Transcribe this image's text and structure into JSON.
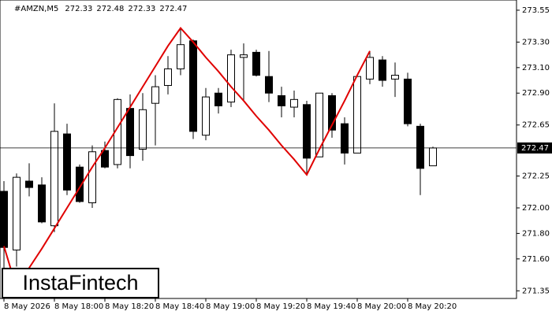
{
  "chart_data": {
    "type": "candlestick",
    "title": "#AMZN,M5",
    "categories": [
      "8 May 2026",
      null,
      null,
      null,
      "8 May 18:00",
      null,
      null,
      null,
      "8 May 18:20",
      null,
      null,
      null,
      "8 May 18:40",
      null,
      null,
      null,
      "8 May 19:00",
      null,
      null,
      null,
      "8 May 19:20",
      null,
      null,
      null,
      "8 May 19:40",
      null,
      null,
      null,
      "8 May 20:00",
      null,
      null,
      null,
      "8 May 20:20",
      null,
      null
    ],
    "open": [
      272.13,
      271.67,
      272.21,
      272.18,
      271.86,
      272.58,
      272.32,
      272.04,
      272.45,
      272.34,
      272.78,
      272.46,
      272.82,
      272.96,
      273.09,
      273.31,
      272.57,
      272.9,
      272.83,
      273.18,
      273.22,
      273.03,
      272.88,
      272.79,
      272.81,
      272.4,
      272.88,
      272.66,
      272.43,
      273.01,
      273.16,
      273.01,
      273.01,
      272.64,
      272.33
    ],
    "high": [
      272.21,
      272.27,
      272.35,
      272.24,
      272.82,
      272.66,
      272.34,
      272.49,
      272.52,
      272.86,
      272.89,
      272.9,
      273.04,
      273.19,
      273.41,
      273.32,
      272.94,
      272.94,
      273.24,
      273.29,
      273.24,
      273.23,
      272.95,
      272.92,
      272.84,
      272.9,
      272.9,
      272.71,
      273.03,
      273.23,
      273.19,
      273.14,
      273.06,
      272.66,
      272.48
    ],
    "low": [
      271.5,
      271.54,
      272.09,
      271.88,
      271.81,
      272.1,
      272.04,
      272.0,
      272.31,
      272.31,
      272.31,
      272.37,
      272.49,
      272.89,
      273.04,
      272.54,
      272.53,
      272.74,
      272.79,
      272.84,
      273.03,
      272.83,
      272.71,
      272.71,
      272.27,
      272.4,
      272.55,
      272.34,
      272.43,
      272.97,
      272.95,
      272.87,
      272.64,
      272.1,
      272.33
    ],
    "close": [
      271.69,
      272.24,
      272.16,
      271.89,
      272.6,
      272.14,
      272.05,
      272.44,
      272.32,
      272.85,
      272.41,
      272.77,
      272.95,
      273.09,
      273.28,
      272.6,
      272.87,
      272.8,
      273.2,
      273.2,
      273.04,
      272.9,
      272.8,
      272.85,
      272.39,
      272.9,
      272.61,
      272.43,
      273.03,
      273.18,
      273.0,
      273.04,
      272.66,
      272.31,
      272.47
    ],
    "up_color": "#ffffff",
    "down_color": "#000000",
    "overlay": {
      "color": "#e00000",
      "values": [
        271.7,
        271.37,
        271.53,
        271.68,
        271.84,
        272.0,
        272.16,
        272.32,
        272.47,
        272.63,
        272.79,
        272.95,
        273.11,
        273.27,
        273.41,
        273.3,
        273.18,
        273.07,
        272.95,
        272.84,
        272.72,
        272.61,
        272.49,
        272.38,
        272.26,
        272.46,
        272.65,
        272.84,
        273.04,
        273.23,
        null,
        null,
        null,
        null,
        null
      ]
    },
    "ylim": [
      271.29,
      273.63
    ],
    "yticks": [
      273.55,
      {
        "value": 273.3,
        "label": "273.30"
      },
      {
        "value": 273.1,
        "label": "273.10"
      },
      {
        "value": 272.9,
        "label": "272.90"
      },
      272.65,
      272.25,
      {
        "value": 272.0,
        "label": "272.00"
      },
      {
        "value": 271.8,
        "label": "271.80"
      },
      {
        "value": 271.6,
        "label": "271.60"
      },
      271.35
    ]
  },
  "branding": "InstaFintech"
}
